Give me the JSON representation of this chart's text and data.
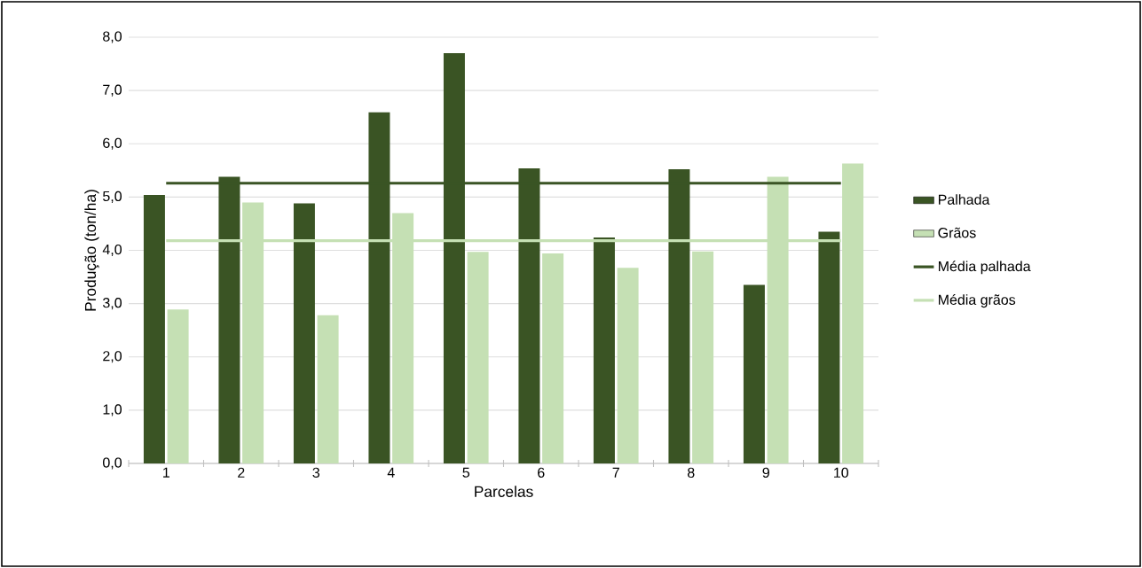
{
  "chart_data": {
    "type": "bar",
    "xlabel": "Parcelas",
    "ylabel": "Produção (ton/ha)",
    "categories": [
      "1",
      "2",
      "3",
      "4",
      "5",
      "6",
      "7",
      "8",
      "9",
      "10"
    ],
    "series": [
      {
        "name": "Palhada",
        "color": "#3a5424",
        "values": [
          5.04,
          5.38,
          4.88,
          6.59,
          7.7,
          5.54,
          4.24,
          5.52,
          3.35,
          4.35
        ]
      },
      {
        "name": "Grãos",
        "color": "#c5e0b4",
        "values": [
          2.89,
          4.9,
          2.78,
          4.7,
          3.97,
          3.94,
          3.67,
          3.98,
          5.38,
          5.63
        ]
      },
      {
        "name": "Média palhada",
        "type": "line",
        "color": "#3a5424",
        "values": [
          5.26,
          5.26,
          5.26,
          5.26,
          5.26,
          5.26,
          5.26,
          5.26,
          5.26,
          5.26
        ]
      },
      {
        "name": "Média grãos",
        "type": "line",
        "color": "#c5e0b4",
        "values": [
          4.18,
          4.18,
          4.18,
          4.18,
          4.18,
          4.18,
          4.18,
          4.18,
          4.18,
          4.18
        ]
      }
    ],
    "ylim": [
      0,
      8
    ],
    "yticks": [
      {
        "value": 0,
        "label": "0,0"
      },
      {
        "value": 1,
        "label": "1,0"
      },
      {
        "value": 2,
        "label": "2,0"
      },
      {
        "value": 3,
        "label": "3,0"
      },
      {
        "value": 4,
        "label": "4,0"
      },
      {
        "value": 5,
        "label": "5,0"
      },
      {
        "value": 6,
        "label": "6,0"
      },
      {
        "value": 7,
        "label": "7,0"
      },
      {
        "value": 8,
        "label": "8,0"
      }
    ],
    "grid": "y",
    "legend": "right"
  }
}
